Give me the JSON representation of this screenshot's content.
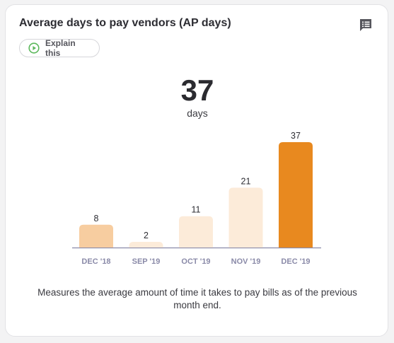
{
  "card": {
    "title": "Average days to pay vendors (AP days)",
    "explain_label": "Explain this"
  },
  "kpi": {
    "value": "37",
    "unit": "days"
  },
  "chart_data": {
    "type": "bar",
    "categories": [
      "DEC '18",
      "SEP '19",
      "OCT '19",
      "NOV '19",
      "DEC '19"
    ],
    "values": [
      8,
      2,
      11,
      21,
      37
    ],
    "bar_colors": [
      "#f7cda0",
      "#fcebd9",
      "#fcebd9",
      "#fcebd9",
      "#e8891f"
    ],
    "ylim": [
      0,
      37
    ],
    "grid": false,
    "title": "",
    "xlabel": "",
    "ylabel": ""
  },
  "description": "Measures the average amount of time it takes to pay bills as of the previous month end.",
  "icons": {
    "comment": "comment-icon",
    "play": "play-circle-icon"
  },
  "colors": {
    "accent": "#e8891f",
    "play_green": "#5cb85c",
    "axis": "#8a8aa8"
  }
}
